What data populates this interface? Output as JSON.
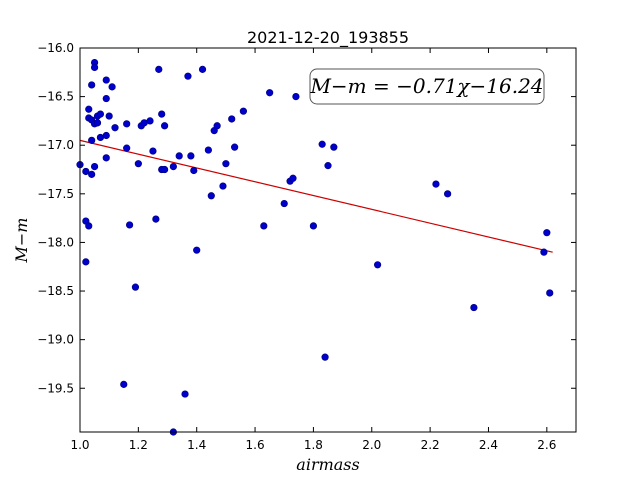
{
  "chart_data": {
    "type": "scatter",
    "title": "2021-12-20_193855",
    "xlabel": "airmass",
    "ylabel": "M−m",
    "xlim": [
      1.0,
      2.7
    ],
    "ylim": [
      -16.0,
      -19.95
    ],
    "y_inverted": true,
    "xticks": [
      "1.0",
      "1.2",
      "1.4",
      "1.6",
      "1.8",
      "2.0",
      "2.2",
      "2.4",
      "2.6"
    ],
    "yticks": [
      "−16.0",
      "−16.5",
      "−17.0",
      "−17.5",
      "−18.0",
      "−18.5",
      "−19.0",
      "−19.5"
    ],
    "point_color": "#0000cc",
    "fit_color": "#cc0000",
    "annotation": "M−m = −0.71χ−16.24",
    "fit": {
      "slope": -0.71,
      "intercept": -16.24,
      "x_range": [
        1.0,
        2.62
      ]
    },
    "points": [
      [
        1.0,
        -17.2
      ],
      [
        1.02,
        -17.27
      ],
      [
        1.02,
        -17.78
      ],
      [
        1.03,
        -17.83
      ],
      [
        1.02,
        -18.2
      ],
      [
        1.03,
        -16.72
      ],
      [
        1.03,
        -16.63
      ],
      [
        1.04,
        -16.74
      ],
      [
        1.05,
        -16.78
      ],
      [
        1.04,
        -16.38
      ],
      [
        1.05,
        -16.15
      ],
      [
        1.05,
        -16.2
      ],
      [
        1.04,
        -16.95
      ],
      [
        1.04,
        -17.3
      ],
      [
        1.05,
        -17.22
      ],
      [
        1.06,
        -16.7
      ],
      [
        1.06,
        -16.77
      ],
      [
        1.07,
        -16.92
      ],
      [
        1.07,
        -16.68
      ],
      [
        1.09,
        -16.33
      ],
      [
        1.09,
        -16.52
      ],
      [
        1.09,
        -16.9
      ],
      [
        1.09,
        -17.13
      ],
      [
        1.1,
        -16.7
      ],
      [
        1.11,
        -16.4
      ],
      [
        1.12,
        -16.82
      ],
      [
        1.15,
        -19.46
      ],
      [
        1.16,
        -16.78
      ],
      [
        1.16,
        -17.03
      ],
      [
        1.17,
        -17.82
      ],
      [
        1.19,
        -18.46
      ],
      [
        1.2,
        -17.19
      ],
      [
        1.21,
        -16.8
      ],
      [
        1.22,
        -16.77
      ],
      [
        1.24,
        -16.75
      ],
      [
        1.25,
        -17.06
      ],
      [
        1.26,
        -17.76
      ],
      [
        1.27,
        -16.22
      ],
      [
        1.28,
        -16.68
      ],
      [
        1.28,
        -17.25
      ],
      [
        1.29,
        -17.25
      ],
      [
        1.29,
        -16.8
      ],
      [
        1.32,
        -17.22
      ],
      [
        1.32,
        -19.95
      ],
      [
        1.34,
        -17.11
      ],
      [
        1.36,
        -19.56
      ],
      [
        1.37,
        -16.29
      ],
      [
        1.38,
        -17.11
      ],
      [
        1.39,
        -17.26
      ],
      [
        1.4,
        -18.08
      ],
      [
        1.42,
        -16.22
      ],
      [
        1.44,
        -17.05
      ],
      [
        1.45,
        -17.52
      ],
      [
        1.46,
        -16.85
      ],
      [
        1.47,
        -16.8
      ],
      [
        1.49,
        -17.42
      ],
      [
        1.5,
        -17.19
      ],
      [
        1.52,
        -16.73
      ],
      [
        1.53,
        -17.02
      ],
      [
        1.56,
        -16.65
      ],
      [
        1.63,
        -17.83
      ],
      [
        1.65,
        -16.46
      ],
      [
        1.7,
        -17.6
      ],
      [
        1.72,
        -17.37
      ],
      [
        1.73,
        -17.34
      ],
      [
        1.74,
        -16.5
      ],
      [
        1.8,
        -17.83
      ],
      [
        1.83,
        -16.99
      ],
      [
        1.85,
        -17.21
      ],
      [
        1.84,
        -19.18
      ],
      [
        1.87,
        -17.02
      ],
      [
        2.02,
        -18.23
      ],
      [
        2.22,
        -17.4
      ],
      [
        2.26,
        -17.5
      ],
      [
        2.35,
        -18.67
      ],
      [
        2.59,
        -18.1
      ],
      [
        2.6,
        -17.9
      ],
      [
        2.61,
        -18.52
      ]
    ]
  }
}
